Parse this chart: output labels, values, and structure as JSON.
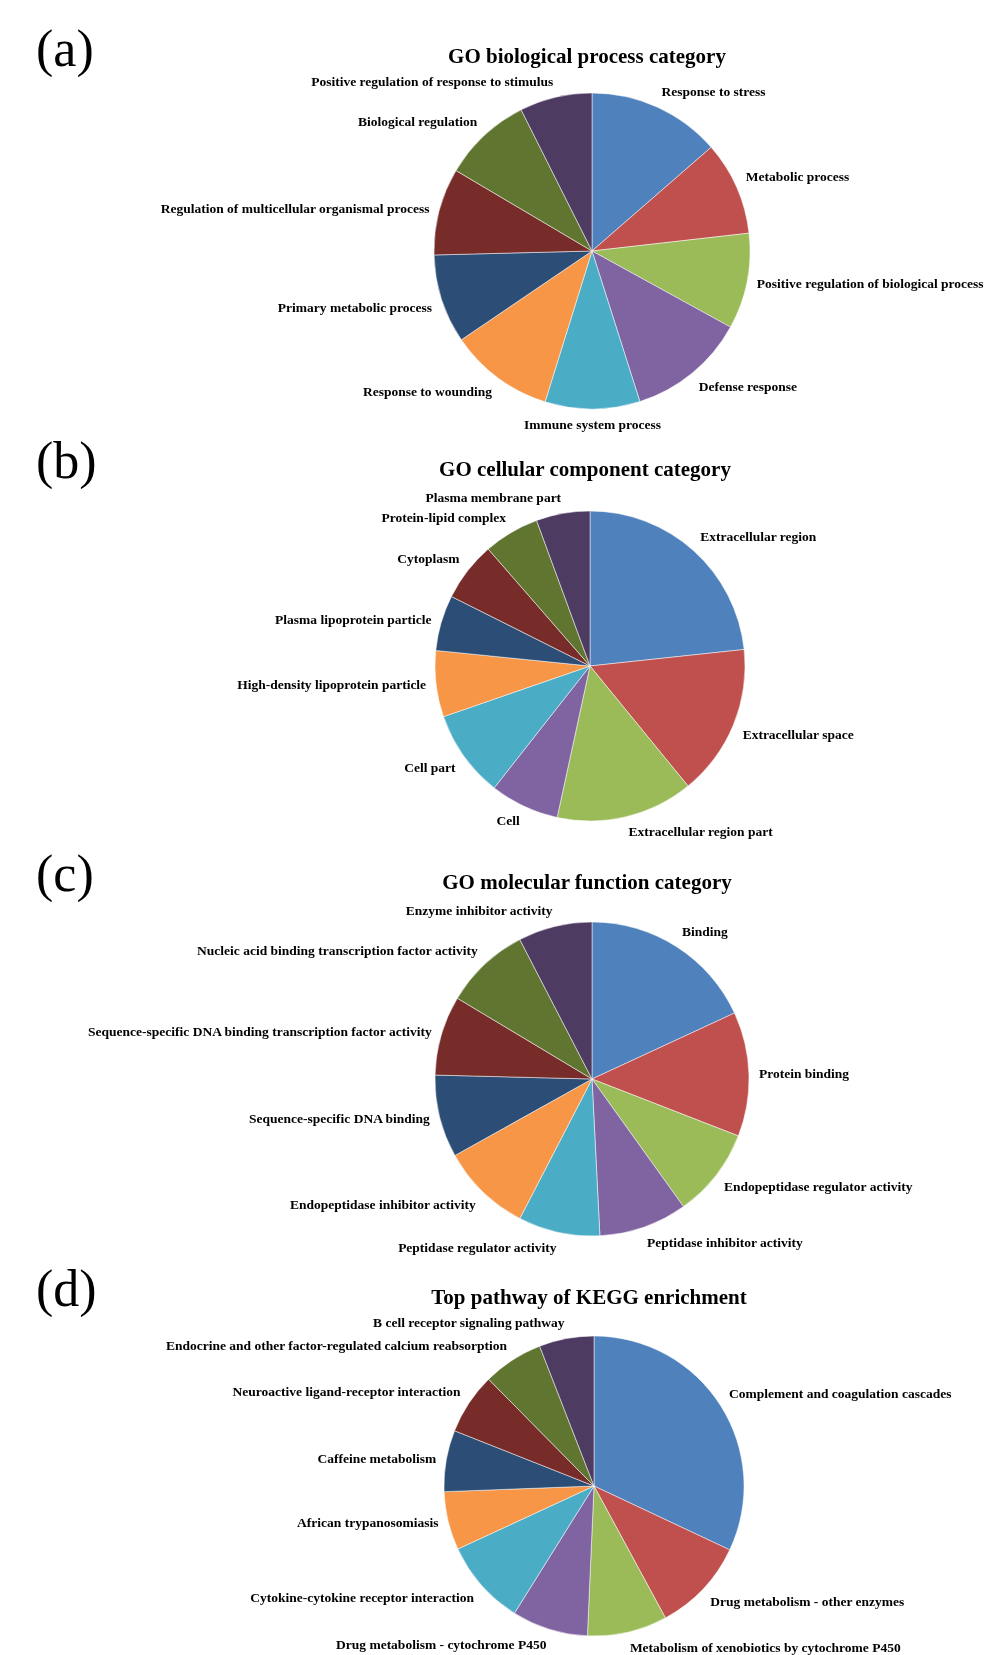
{
  "chart_data": [
    {
      "type": "pie",
      "title": "GO biological process category",
      "annotations": [
        "(a)"
      ],
      "categories": [
        "Response to stress",
        "Metabolic process",
        "Positive regulation of biological process",
        "Defense response",
        "Immune system process",
        "Response to wounding",
        "Primary metabolic process",
        "Regulation of multicellular organismal process",
        "Biological regulation",
        "Positive regulation of response to stimulus"
      ],
      "values": [
        13.6,
        9.6,
        9.8,
        12.1,
        9.7,
        10.7,
        9.1,
        8.9,
        9.1,
        7.4
      ],
      "colors": [
        "#4f81bd",
        "#c0504d",
        "#9bbb59",
        "#8064a2",
        "#4bacc6",
        "#f79646",
        "#2c4d75",
        "#772c2a",
        "#5f7530",
        "#4d3b62"
      ]
    },
    {
      "type": "pie",
      "title": "GO cellular component category",
      "annotations": [
        "(b)"
      ],
      "categories": [
        "Extracellular region",
        "Extracellular space",
        "Extracellular region part",
        "Cell",
        "Cell part",
        "High-density lipoprotein particle",
        "Plasma lipoprotein particle",
        "Cytoplasm",
        "Protein-lipid complex",
        "Plasma membrane part"
      ],
      "values": [
        23.3,
        15.8,
        14.3,
        7.2,
        9.1,
        6.9,
        5.8,
        6.2,
        5.8,
        5.6
      ],
      "colors": [
        "#4f81bd",
        "#c0504d",
        "#9bbb59",
        "#8064a2",
        "#4bacc6",
        "#f79646",
        "#2c4d75",
        "#772c2a",
        "#5f7530",
        "#4d3b62"
      ]
    },
    {
      "type": "pie",
      "title": "GO molecular function category",
      "annotations": [
        "(c)"
      ],
      "categories": [
        "Binding",
        "Protein binding",
        "Endopeptidase regulator activity",
        "Peptidase inhibitor activity",
        "Peptidase regulator activity",
        "Endopeptidase inhibitor activity",
        "Sequence-specific DNA binding",
        "Sequence-specific DNA binding transcription factor activity",
        "Nucleic acid binding transcription factor activity",
        "Enzyme inhibitor activity"
      ],
      "values": [
        18.1,
        12.8,
        9.2,
        9.1,
        8.4,
        9.3,
        8.5,
        8.2,
        8.8,
        7.6
      ],
      "colors": [
        "#4f81bd",
        "#c0504d",
        "#9bbb59",
        "#8064a2",
        "#4bacc6",
        "#f79646",
        "#2c4d75",
        "#772c2a",
        "#5f7530",
        "#4d3b62"
      ]
    },
    {
      "type": "pie",
      "title": "Top pathway of  KEGG enrichment",
      "annotations": [
        "(d)"
      ],
      "categories": [
        "Complement and coagulation cascades",
        "Drug metabolism - other enzymes",
        "Metabolism of xenobiotics by cytochrome P450",
        "Drug metabolism - cytochrome P450",
        "Cytokine-cytokine receptor interaction",
        "African trypanosomiasis",
        "Caffeine metabolism",
        "Neuroactive ligand-receptor interaction",
        "Endocrine and other factor-regulated calcium reabsorption",
        "B cell receptor signaling pathway"
      ],
      "values": [
        32,
        10.1,
        8.6,
        8.2,
        9.2,
        6.3,
        6.6,
        6.6,
        6.5,
        5.9
      ],
      "colors": [
        "#4f81bd",
        "#c0504d",
        "#9bbb59",
        "#8064a2",
        "#4bacc6",
        "#f79646",
        "#2c4d75",
        "#772c2a",
        "#5f7530",
        "#4d3b62"
      ]
    }
  ]
}
